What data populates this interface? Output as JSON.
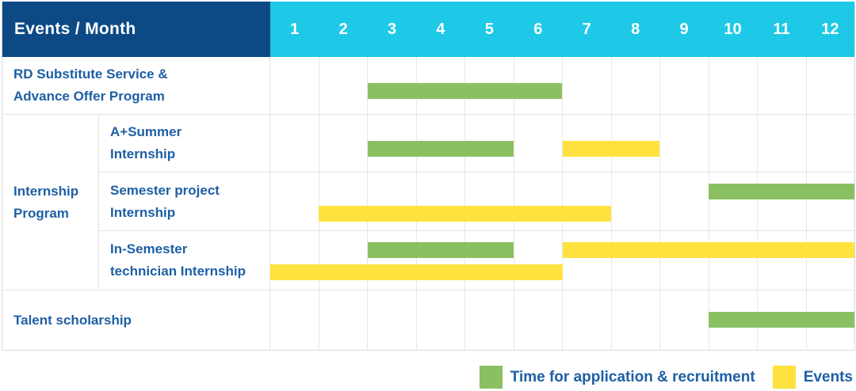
{
  "header": {
    "corner_label": "Events / Month"
  },
  "colors": {
    "corner_bg": "#0d4a85",
    "month_header_bg": "#1ec9e8",
    "header_text": "#ffffff",
    "label_text": "#1d5fa5",
    "green": "#8ac062",
    "yellow": "#ffe23e",
    "grid_line": "#e8e8e8",
    "row_border": "#e3e3e3",
    "outer_border": "#d9d9d9",
    "page_bg": "#ffffff"
  },
  "chart_data": {
    "type": "table",
    "subtype": "gantt-monthly-schedule",
    "title": "Events / Month",
    "x_unit": "month",
    "x_ticks": [
      "1",
      "2",
      "3",
      "4",
      "5",
      "6",
      "7",
      "8",
      "9",
      "10",
      "11",
      "12"
    ],
    "x_range": [
      1,
      12
    ],
    "grid": true,
    "legend_position": "bottom-right",
    "groups": [
      {
        "name": "Internship Program",
        "lines": [
          "Internship",
          "Program"
        ],
        "row_indexes": [
          1,
          2,
          3
        ]
      }
    ],
    "rows": [
      {
        "label": "RD Substitute Service & Advance Offer Program",
        "label_lines": [
          "RD Substitute Service &",
          "Advance Offer Program"
        ],
        "bars": [
          {
            "key": "green",
            "start_month": 3,
            "end_month": 6,
            "lane": "mid"
          }
        ]
      },
      {
        "label": "A+Summer Internship",
        "label_lines": [
          "A+Summer",
          "Internship"
        ],
        "bars": [
          {
            "key": "green",
            "start_month": 3,
            "end_month": 5,
            "lane": "mid"
          },
          {
            "key": "yellow",
            "start_month": 7,
            "end_month": 8,
            "lane": "mid"
          }
        ]
      },
      {
        "label": "Semester project Internship",
        "label_lines": [
          "Semester project",
          "Internship"
        ],
        "bars": [
          {
            "key": "green",
            "start_month": 10,
            "end_month": 12,
            "lane": "upper"
          },
          {
            "key": "yellow",
            "start_month": 2,
            "end_month": 7,
            "lane": "lower"
          }
        ]
      },
      {
        "label": "In-Semester technician Internship",
        "label_lines": [
          "In-Semester",
          "technician Internship"
        ],
        "bars": [
          {
            "key": "green",
            "start_month": 3,
            "end_month": 5,
            "lane": "upper"
          },
          {
            "key": "yellow",
            "start_month": 7,
            "end_month": 12,
            "lane": "upper"
          },
          {
            "key": "yellow",
            "start_month": 1,
            "end_month": 6,
            "lane": "lower"
          }
        ]
      },
      {
        "label": "Talent scholarship",
        "label_lines": [
          "Talent scholarship"
        ],
        "bars": [
          {
            "key": "green",
            "start_month": 10,
            "end_month": 12,
            "lane": "mid"
          }
        ]
      }
    ],
    "legend": [
      {
        "key": "green",
        "label": "Time for application & recruitment"
      },
      {
        "key": "yellow",
        "label": "Events"
      }
    ]
  }
}
